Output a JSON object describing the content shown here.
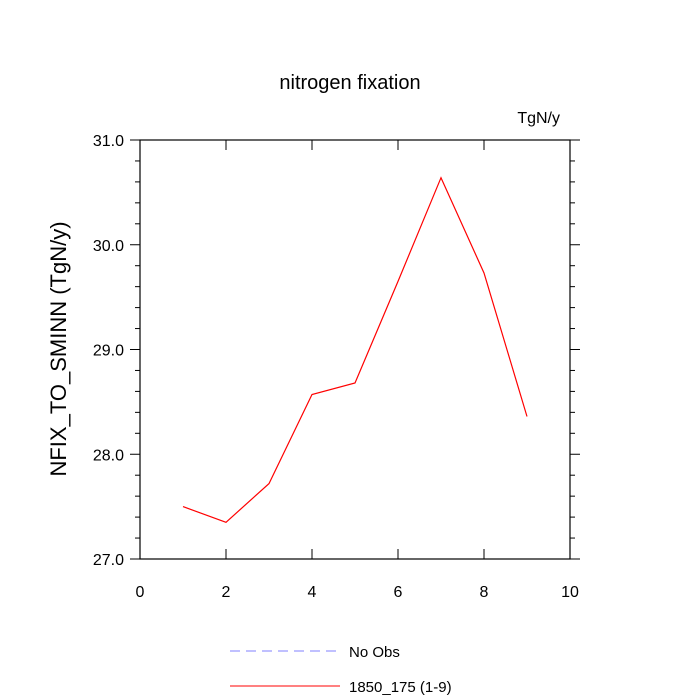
{
  "chart_data": {
    "type": "line",
    "title": "nitrogen fixation",
    "units": "TgN/y",
    "xlabel": "",
    "ylabel": "NFIX_TO_SMINN  (TgN/y)",
    "xlim": [
      0,
      10
    ],
    "ylim": [
      27.0,
      31.0
    ],
    "x_ticks": [
      0,
      2,
      4,
      6,
      8,
      10
    ],
    "x_tick_labels": [
      "0",
      "2",
      "4",
      "6",
      "8",
      "10"
    ],
    "y_ticks": [
      27.0,
      28.0,
      29.0,
      30.0,
      31.0
    ],
    "y_tick_labels": [
      "27.0",
      "28.0",
      "29.0",
      "30.0",
      "31.0"
    ],
    "grid": false,
    "legend_position": "bottom",
    "series": [
      {
        "name": "No Obs",
        "color": "#8080ff",
        "dash": "dashed",
        "x": [],
        "y": []
      },
      {
        "name": "1850_175 (1-9)",
        "color": "#ff0000",
        "dash": "solid",
        "x": [
          1,
          2,
          3,
          4,
          5,
          6,
          7,
          8,
          9
        ],
        "y": [
          27.5,
          27.35,
          27.72,
          28.57,
          28.68,
          29.65,
          30.64,
          29.73,
          28.36
        ]
      }
    ]
  }
}
